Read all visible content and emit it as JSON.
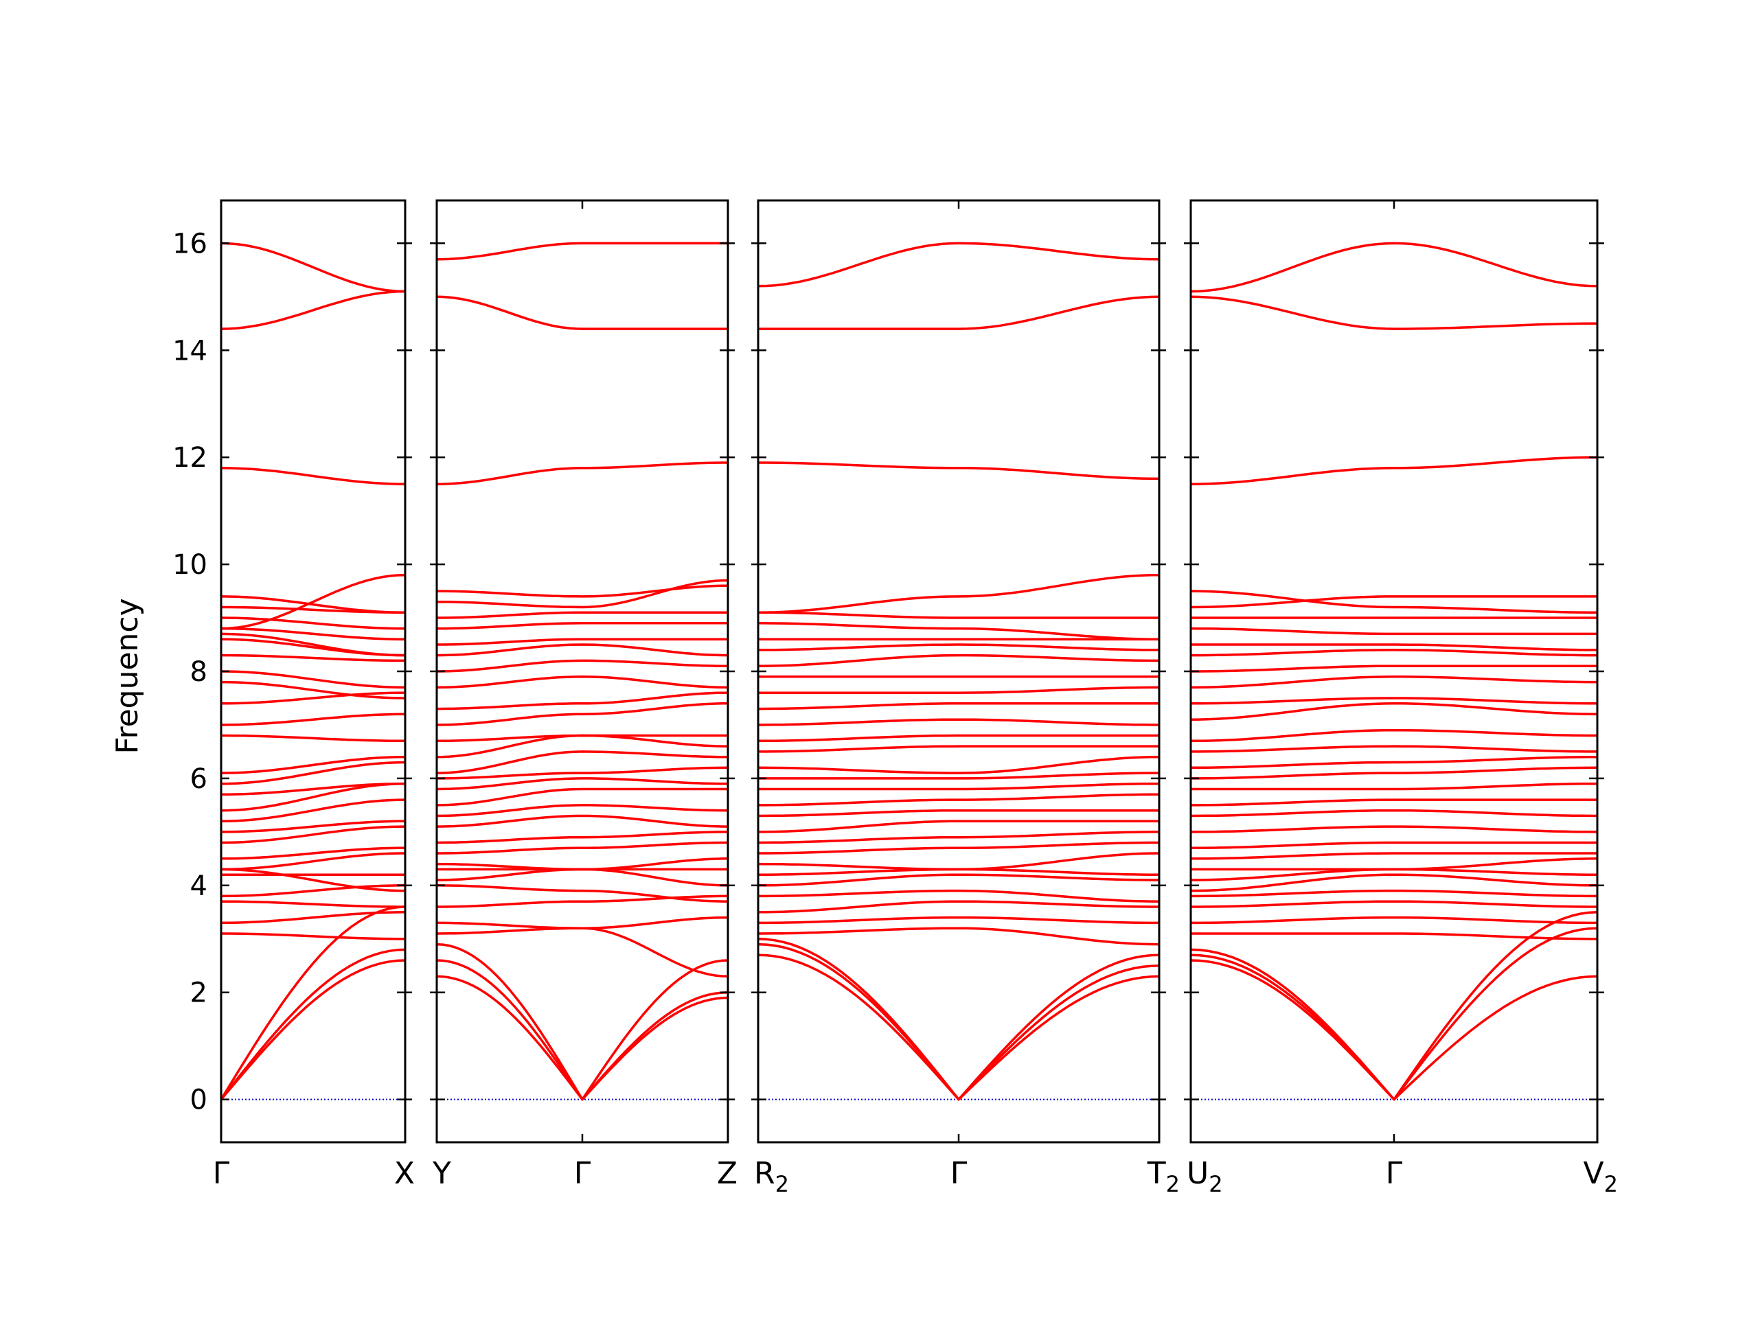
{
  "chart_data": {
    "type": "line",
    "ylabel": "Frequency",
    "ylim": [
      -0.8,
      16.8
    ],
    "yticks": [
      0,
      2,
      4,
      6,
      8,
      10,
      12,
      14,
      16
    ],
    "ytick_labels": [
      "0",
      "2",
      "4",
      "6",
      "8",
      "10",
      "12",
      "14",
      "16"
    ],
    "colors": {
      "bands": "#ff0000",
      "zero_line": "#0000cc",
      "axes": "#000000"
    },
    "panels": [
      {
        "path": [
          "Γ",
          "X"
        ],
        "labels": [
          {
            "main": "Γ",
            "sub": ""
          },
          {
            "main": "X",
            "sub": ""
          }
        ],
        "bands": [
          [
            0,
            2.6
          ],
          [
            0,
            2.8
          ],
          [
            0,
            3.6
          ],
          [
            3.1,
            3.0
          ],
          [
            3.3,
            3.5
          ],
          [
            3.7,
            3.6
          ],
          [
            3.8,
            4.0
          ],
          [
            4.3,
            3.9
          ],
          [
            4.2,
            4.2
          ],
          [
            4.3,
            4.6
          ],
          [
            4.5,
            4.7
          ],
          [
            4.8,
            5.1
          ],
          [
            5.0,
            5.2
          ],
          [
            5.2,
            5.6
          ],
          [
            5.4,
            5.9
          ],
          [
            5.7,
            5.9
          ],
          [
            5.9,
            6.3
          ],
          [
            6.1,
            6.4
          ],
          [
            6.8,
            6.7
          ],
          [
            7.0,
            7.2
          ],
          [
            7.4,
            7.6
          ],
          [
            7.8,
            7.5
          ],
          [
            8.0,
            7.7
          ],
          [
            8.3,
            8.2
          ],
          [
            8.6,
            8.3
          ],
          [
            8.7,
            8.3
          ],
          [
            8.8,
            8.6
          ],
          [
            9.0,
            8.8
          ],
          [
            9.2,
            9.1
          ],
          [
            8.8,
            9.8
          ],
          [
            9.4,
            9.1
          ],
          [
            11.8,
            11.5
          ],
          [
            14.4,
            15.1
          ],
          [
            16.0,
            15.1
          ]
        ]
      },
      {
        "path": [
          "Y",
          "Γ",
          "Z"
        ],
        "labels": [
          {
            "main": "Y",
            "sub": ""
          },
          {
            "main": "Γ",
            "sub": ""
          },
          {
            "main": "Z",
            "sub": ""
          }
        ],
        "bands": [
          [
            2.3,
            0,
            1.9
          ],
          [
            2.6,
            0,
            2.0
          ],
          [
            2.9,
            0,
            2.6
          ],
          [
            3.1,
            3.2,
            2.3
          ],
          [
            3.3,
            3.2,
            3.4
          ],
          [
            3.6,
            3.7,
            3.8
          ],
          [
            4.0,
            3.9,
            3.7
          ],
          [
            4.1,
            4.3,
            4.0
          ],
          [
            4.3,
            4.3,
            4.3
          ],
          [
            4.4,
            4.3,
            4.5
          ],
          [
            4.6,
            4.7,
            4.8
          ],
          [
            4.8,
            4.9,
            5.0
          ],
          [
            5.1,
            5.3,
            5.1
          ],
          [
            5.3,
            5.5,
            5.4
          ],
          [
            5.5,
            5.8,
            5.8
          ],
          [
            5.8,
            6.0,
            5.9
          ],
          [
            6.0,
            6.1,
            6.2
          ],
          [
            6.1,
            6.5,
            6.4
          ],
          [
            6.4,
            6.8,
            6.6
          ],
          [
            6.7,
            6.8,
            6.8
          ],
          [
            7.0,
            7.2,
            7.4
          ],
          [
            7.3,
            7.4,
            7.6
          ],
          [
            7.7,
            7.9,
            7.7
          ],
          [
            8.0,
            8.2,
            8.1
          ],
          [
            8.3,
            8.5,
            8.3
          ],
          [
            8.5,
            8.6,
            8.6
          ],
          [
            8.8,
            8.9,
            8.9
          ],
          [
            9.0,
            9.1,
            9.1
          ],
          [
            9.3,
            9.2,
            9.7
          ],
          [
            9.5,
            9.4,
            9.6
          ],
          [
            11.5,
            11.8,
            11.9
          ],
          [
            15.0,
            14.4,
            14.4
          ],
          [
            15.7,
            16.0,
            16.0
          ]
        ]
      },
      {
        "path": [
          "R₂",
          "Γ",
          "T₂"
        ],
        "labels": [
          {
            "main": "R",
            "sub": "2"
          },
          {
            "main": "Γ",
            "sub": ""
          },
          {
            "main": "T",
            "sub": "2"
          }
        ],
        "bands": [
          [
            2.7,
            0,
            2.3
          ],
          [
            2.9,
            0,
            2.5
          ],
          [
            3.0,
            0,
            2.7
          ],
          [
            3.1,
            3.2,
            2.9
          ],
          [
            3.3,
            3.4,
            3.3
          ],
          [
            3.5,
            3.7,
            3.6
          ],
          [
            3.8,
            3.9,
            3.7
          ],
          [
            4.0,
            4.2,
            4.1
          ],
          [
            4.2,
            4.3,
            4.2
          ],
          [
            4.4,
            4.3,
            4.6
          ],
          [
            4.6,
            4.7,
            4.8
          ],
          [
            4.8,
            4.9,
            5.0
          ],
          [
            5.0,
            5.2,
            5.2
          ],
          [
            5.3,
            5.4,
            5.4
          ],
          [
            5.5,
            5.6,
            5.7
          ],
          [
            5.8,
            5.8,
            5.9
          ],
          [
            6.0,
            6.0,
            6.1
          ],
          [
            6.2,
            6.1,
            6.4
          ],
          [
            6.5,
            6.6,
            6.6
          ],
          [
            6.7,
            6.8,
            6.8
          ],
          [
            7.0,
            7.1,
            7.0
          ],
          [
            7.3,
            7.4,
            7.4
          ],
          [
            7.6,
            7.6,
            7.7
          ],
          [
            7.9,
            7.9,
            7.9
          ],
          [
            8.1,
            8.3,
            8.2
          ],
          [
            8.4,
            8.5,
            8.4
          ],
          [
            8.6,
            8.6,
            8.6
          ],
          [
            8.9,
            8.8,
            8.6
          ],
          [
            9.1,
            9.0,
            9.0
          ],
          [
            9.1,
            9.4,
            9.8
          ],
          [
            11.9,
            11.8,
            11.6
          ],
          [
            14.4,
            14.4,
            15.0
          ],
          [
            15.2,
            16.0,
            15.7
          ]
        ]
      },
      {
        "path": [
          "U₂",
          "Γ",
          "V₂"
        ],
        "labels": [
          {
            "main": "U",
            "sub": "2"
          },
          {
            "main": "Γ",
            "sub": ""
          },
          {
            "main": "V",
            "sub": "2"
          }
        ],
        "bands": [
          [
            2.6,
            0,
            2.3
          ],
          [
            2.7,
            0,
            3.2
          ],
          [
            2.8,
            0,
            3.5
          ],
          [
            3.1,
            3.1,
            3.0
          ],
          [
            3.3,
            3.4,
            3.3
          ],
          [
            3.6,
            3.7,
            3.6
          ],
          [
            3.8,
            3.9,
            3.8
          ],
          [
            3.9,
            4.2,
            4.0
          ],
          [
            4.1,
            4.3,
            4.2
          ],
          [
            4.3,
            4.3,
            4.5
          ],
          [
            4.5,
            4.6,
            4.6
          ],
          [
            4.7,
            4.8,
            4.8
          ],
          [
            5.0,
            5.1,
            5.0
          ],
          [
            5.3,
            5.4,
            5.3
          ],
          [
            5.5,
            5.6,
            5.6
          ],
          [
            5.8,
            5.8,
            5.9
          ],
          [
            6.0,
            6.1,
            6.2
          ],
          [
            6.2,
            6.3,
            6.4
          ],
          [
            6.5,
            6.6,
            6.5
          ],
          [
            6.7,
            6.9,
            6.8
          ],
          [
            7.1,
            7.4,
            7.2
          ],
          [
            7.4,
            7.5,
            7.4
          ],
          [
            7.7,
            7.9,
            7.8
          ],
          [
            8.0,
            8.1,
            8.1
          ],
          [
            8.3,
            8.4,
            8.3
          ],
          [
            8.5,
            8.5,
            8.4
          ],
          [
            8.8,
            8.7,
            8.7
          ],
          [
            9.0,
            9.0,
            9.0
          ],
          [
            9.2,
            9.4,
            9.4
          ],
          [
            9.5,
            9.2,
            9.1
          ],
          [
            11.5,
            11.8,
            12.0
          ],
          [
            15.0,
            14.4,
            14.5
          ],
          [
            15.1,
            16.0,
            15.2
          ]
        ]
      }
    ]
  }
}
